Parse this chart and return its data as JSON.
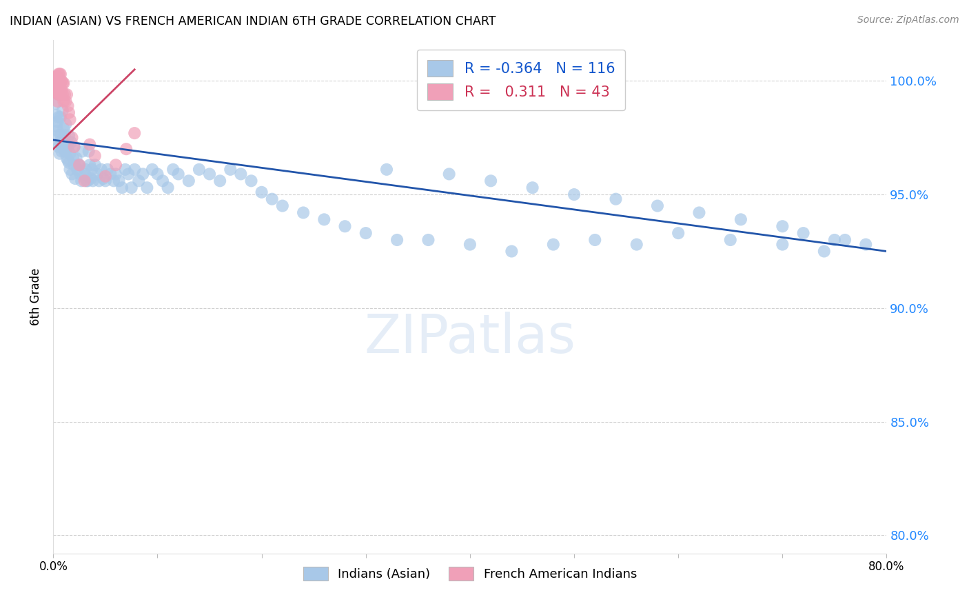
{
  "title": "INDIAN (ASIAN) VS FRENCH AMERICAN INDIAN 6TH GRADE CORRELATION CHART",
  "source": "Source: ZipAtlas.com",
  "ylabel": "6th Grade",
  "ytick_labels": [
    "100.0%",
    "95.0%",
    "90.0%",
    "85.0%",
    "80.0%"
  ],
  "ytick_values": [
    1.0,
    0.95,
    0.9,
    0.85,
    0.8
  ],
  "xlim": [
    0.0,
    0.8
  ],
  "ylim": [
    0.792,
    1.018
  ],
  "legend_blue_R": "-0.364",
  "legend_blue_N": "116",
  "legend_pink_R": "0.311",
  "legend_pink_N": "43",
  "blue_color": "#a8c8e8",
  "pink_color": "#f0a0b8",
  "blue_line_color": "#2255aa",
  "pink_line_color": "#cc4466",
  "watermark_text": "ZIPatlas",
  "blue_line_x": [
    0.0,
    0.8
  ],
  "blue_line_y": [
    0.974,
    0.925
  ],
  "pink_line_x": [
    0.0,
    0.078
  ],
  "pink_line_y": [
    0.97,
    1.005
  ],
  "blue_x": [
    0.002,
    0.003,
    0.003,
    0.004,
    0.004,
    0.005,
    0.005,
    0.005,
    0.006,
    0.006,
    0.007,
    0.007,
    0.008,
    0.008,
    0.009,
    0.009,
    0.01,
    0.01,
    0.011,
    0.011,
    0.012,
    0.012,
    0.013,
    0.013,
    0.014,
    0.014,
    0.015,
    0.015,
    0.016,
    0.016,
    0.017,
    0.018,
    0.019,
    0.02,
    0.02,
    0.021,
    0.022,
    0.023,
    0.024,
    0.025,
    0.026,
    0.027,
    0.028,
    0.03,
    0.031,
    0.032,
    0.033,
    0.034,
    0.035,
    0.036,
    0.037,
    0.038,
    0.04,
    0.042,
    0.044,
    0.046,
    0.048,
    0.05,
    0.052,
    0.055,
    0.058,
    0.06,
    0.063,
    0.066,
    0.069,
    0.072,
    0.075,
    0.078,
    0.082,
    0.086,
    0.09,
    0.095,
    0.1,
    0.105,
    0.11,
    0.115,
    0.12,
    0.13,
    0.14,
    0.15,
    0.16,
    0.17,
    0.18,
    0.19,
    0.2,
    0.21,
    0.22,
    0.24,
    0.26,
    0.28,
    0.3,
    0.33,
    0.36,
    0.4,
    0.44,
    0.48,
    0.52,
    0.56,
    0.6,
    0.65,
    0.7,
    0.74,
    0.76,
    0.78,
    0.32,
    0.38,
    0.42,
    0.46,
    0.5,
    0.54,
    0.58,
    0.62,
    0.66,
    0.7,
    0.72,
    0.75
  ],
  "blue_y": [
    0.99,
    0.985,
    0.98,
    0.982,
    0.978,
    0.976,
    0.984,
    0.971,
    0.973,
    0.968,
    0.976,
    0.984,
    0.973,
    0.969,
    0.987,
    0.972,
    0.979,
    0.972,
    0.976,
    0.969,
    0.969,
    0.981,
    0.966,
    0.972,
    0.971,
    0.965,
    0.964,
    0.976,
    0.961,
    0.968,
    0.973,
    0.959,
    0.966,
    0.963,
    0.971,
    0.957,
    0.966,
    0.961,
    0.963,
    0.963,
    0.959,
    0.956,
    0.969,
    0.959,
    0.961,
    0.956,
    0.956,
    0.969,
    0.963,
    0.957,
    0.961,
    0.956,
    0.963,
    0.959,
    0.956,
    0.961,
    0.957,
    0.956,
    0.961,
    0.959,
    0.956,
    0.959,
    0.956,
    0.953,
    0.961,
    0.959,
    0.953,
    0.961,
    0.956,
    0.959,
    0.953,
    0.961,
    0.959,
    0.956,
    0.953,
    0.961,
    0.959,
    0.956,
    0.961,
    0.959,
    0.956,
    0.961,
    0.959,
    0.956,
    0.951,
    0.948,
    0.945,
    0.942,
    0.939,
    0.936,
    0.933,
    0.93,
    0.93,
    0.928,
    0.925,
    0.928,
    0.93,
    0.928,
    0.933,
    0.93,
    0.928,
    0.925,
    0.93,
    0.928,
    0.961,
    0.959,
    0.956,
    0.953,
    0.95,
    0.948,
    0.945,
    0.942,
    0.939,
    0.936,
    0.933,
    0.93
  ],
  "pink_x": [
    0.002,
    0.002,
    0.003,
    0.003,
    0.003,
    0.004,
    0.004,
    0.004,
    0.005,
    0.005,
    0.005,
    0.005,
    0.005,
    0.005,
    0.006,
    0.006,
    0.006,
    0.006,
    0.007,
    0.007,
    0.007,
    0.008,
    0.008,
    0.009,
    0.009,
    0.01,
    0.01,
    0.011,
    0.012,
    0.013,
    0.014,
    0.015,
    0.016,
    0.018,
    0.02,
    0.025,
    0.03,
    0.035,
    0.04,
    0.05,
    0.06,
    0.07,
    0.078
  ],
  "pink_y": [
    0.996,
    1.001,
    0.995,
    0.999,
    1.002,
    0.991,
    0.998,
    1.002,
    0.994,
    0.999,
    1.003,
    0.997,
    1.001,
    0.994,
    0.996,
    1.0,
    1.003,
    0.997,
    0.994,
    0.999,
    1.003,
    0.996,
    1.0,
    0.994,
    0.999,
    0.991,
    0.999,
    0.994,
    0.991,
    0.994,
    0.989,
    0.986,
    0.983,
    0.975,
    0.971,
    0.963,
    0.956,
    0.972,
    0.967,
    0.958,
    0.963,
    0.97,
    0.977
  ]
}
